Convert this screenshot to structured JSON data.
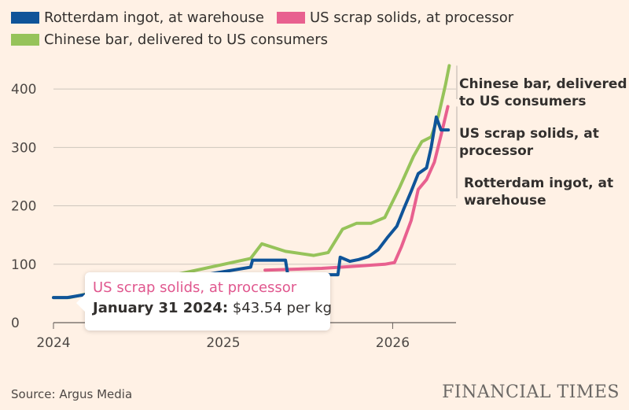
{
  "legend": [
    {
      "label": "Rotterdam ingot, at warehouse",
      "color": "#0f5499"
    },
    {
      "label": "US scrap solids, at processor",
      "color": "#e8608f"
    },
    {
      "label": "Chinese bar, delivered to US consumers",
      "color": "#96c35a"
    }
  ],
  "chart_data": {
    "type": "line",
    "x_ticks": [
      "2024",
      "2025",
      "2026"
    ],
    "y_ticks": [
      "0",
      "100",
      "200",
      "300",
      "400"
    ],
    "ylim": [
      0,
      450
    ],
    "grid": true,
    "series": [
      {
        "name": "Rotterdam ingot, at warehouse",
        "color": "#0f5499",
        "end_label": [
          "Rotterdam ingot, at",
          "warehouse"
        ],
        "points": [
          [
            "2024-01-01",
            43
          ],
          [
            "2024-01-31",
            43
          ],
          [
            "2025-03-01",
            95
          ],
          [
            "2025-03-05",
            107
          ],
          [
            "2025-05-15",
            107
          ],
          [
            "2025-05-20",
            82
          ],
          [
            "2025-09-05",
            82
          ],
          [
            "2025-09-10",
            112
          ],
          [
            "2025-10-01",
            105
          ],
          [
            "2025-10-20",
            108
          ],
          [
            "2025-11-10",
            113
          ],
          [
            "2025-12-01",
            125
          ],
          [
            "2025-12-20",
            145
          ],
          [
            "2026-01-10",
            165
          ],
          [
            "2026-01-25",
            195
          ],
          [
            "2026-02-10",
            225
          ],
          [
            "2026-02-25",
            255
          ],
          [
            "2026-03-15",
            265
          ],
          [
            "2026-03-25",
            300
          ],
          [
            "2026-04-05",
            352
          ],
          [
            "2026-04-15",
            330
          ],
          [
            "2026-05-01",
            330
          ]
        ]
      },
      {
        "name": "US scrap solids, at processor",
        "color": "#e8608f",
        "end_label": [
          "US scrap solids, at",
          "processor"
        ],
        "points": [
          [
            "2025-04-01",
            90
          ],
          [
            "2025-08-01",
            93
          ],
          [
            "2025-10-01",
            96
          ],
          [
            "2025-12-15",
            100
          ],
          [
            "2026-01-05",
            103
          ],
          [
            "2026-01-20",
            130
          ],
          [
            "2026-02-10",
            175
          ],
          [
            "2026-02-25",
            228
          ],
          [
            "2026-03-15",
            245
          ],
          [
            "2026-04-01",
            275
          ],
          [
            "2026-04-15",
            320
          ],
          [
            "2026-04-30",
            370
          ]
        ]
      },
      {
        "name": "Chinese bar, delivered to US consumers",
        "color": "#96c35a",
        "end_label": [
          "Chinese bar, delivered",
          "to US consumers"
        ],
        "points": [
          [
            "2024-01-01",
            43
          ],
          [
            "2024-02-05",
            43
          ],
          [
            "2025-03-01",
            110
          ],
          [
            "2025-03-25",
            135
          ],
          [
            "2025-05-15",
            122
          ],
          [
            "2025-07-15",
            115
          ],
          [
            "2025-08-15",
            120
          ],
          [
            "2025-09-15",
            160
          ],
          [
            "2025-10-15",
            170
          ],
          [
            "2025-11-15",
            170
          ],
          [
            "2025-12-15",
            180
          ],
          [
            "2026-01-15",
            230
          ],
          [
            "2026-02-15",
            285
          ],
          [
            "2026-03-05",
            310
          ],
          [
            "2026-03-25",
            318
          ],
          [
            "2026-04-10",
            355
          ],
          [
            "2026-04-25",
            408
          ],
          [
            "2026-05-03",
            440
          ]
        ]
      }
    ]
  },
  "tooltip": {
    "series": "US scrap solids, at processor",
    "date": "January 31 2024:",
    "value": "$43.54 per kg"
  },
  "footer": {
    "source": "Source: Argus Media",
    "brand": "FINANCIAL TIMES"
  }
}
